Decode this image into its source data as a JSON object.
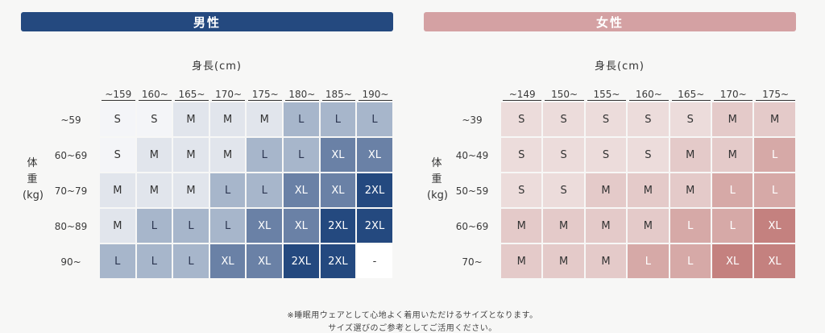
{
  "men": {
    "banner": "男性",
    "height_label": "身長(cm)",
    "weight_label": [
      "体",
      "重",
      "(kg)"
    ],
    "columns": [
      "~159",
      "160~",
      "165~",
      "170~",
      "175~",
      "180~",
      "185~",
      "190~"
    ],
    "rows": [
      {
        "label": "~59",
        "cells": [
          "S",
          "S",
          "M",
          "M",
          "M",
          "L",
          "L",
          "L"
        ]
      },
      {
        "label": "60~69",
        "cells": [
          "S",
          "M",
          "M",
          "M",
          "L",
          "L",
          "XL",
          "XL"
        ]
      },
      {
        "label": "70~79",
        "cells": [
          "M",
          "M",
          "M",
          "L",
          "L",
          "XL",
          "XL",
          "2XL"
        ]
      },
      {
        "label": "80~89",
        "cells": [
          "M",
          "L",
          "L",
          "L",
          "XL",
          "XL",
          "2XL",
          "2XL"
        ]
      },
      {
        "label": "90~",
        "cells": [
          "L",
          "L",
          "L",
          "XL",
          "XL",
          "2XL",
          "2XL",
          "-"
        ]
      }
    ],
    "colors": {
      "S": "#f4f5f8",
      "M": "#e1e5ec",
      "L": "#a7b6cb",
      "XL": "#6a81a6",
      "2XL": "#24497f",
      "-": "#ffffff"
    }
  },
  "women": {
    "banner": "女性",
    "height_label": "身長(cm)",
    "weight_label": [
      "体",
      "重",
      "(kg)"
    ],
    "columns": [
      "~149",
      "150~",
      "155~",
      "160~",
      "165~",
      "170~",
      "175~"
    ],
    "rows": [
      {
        "label": "~39",
        "cells": [
          "S",
          "S",
          "S",
          "S",
          "S",
          "M",
          "M"
        ]
      },
      {
        "label": "40~49",
        "cells": [
          "S",
          "S",
          "S",
          "S",
          "M",
          "M",
          "L"
        ]
      },
      {
        "label": "50~59",
        "cells": [
          "S",
          "S",
          "M",
          "M",
          "M",
          "L",
          "L"
        ]
      },
      {
        "label": "60~69",
        "cells": [
          "M",
          "M",
          "M",
          "M",
          "L",
          "L",
          "XL"
        ]
      },
      {
        "label": "70~",
        "cells": [
          "M",
          "M",
          "M",
          "L",
          "L",
          "XL",
          "XL"
        ]
      }
    ],
    "colors": {
      "S": "#ecdcdb",
      "M": "#e4cac9",
      "L": "#d6a9a7",
      "XL": "#c4817f"
    }
  },
  "notes": [
    "※睡眠用ウェアとして心地よく着用いただけるサイズとなります。",
    "サイズ選びのご参考としてご活用ください。"
  ]
}
